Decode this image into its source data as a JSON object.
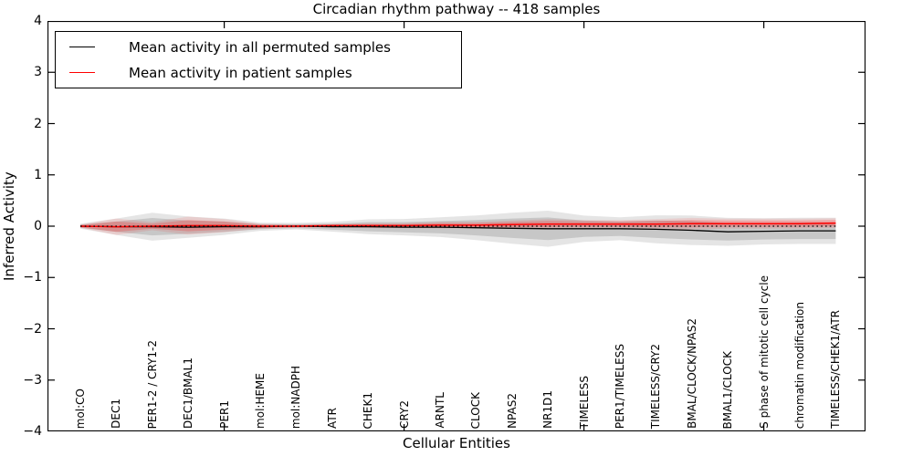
{
  "title": "Circadian rhythm pathway -- 418 samples",
  "legend": {
    "position": "upper left",
    "items": [
      {
        "label": "Mean activity in all permuted samples",
        "color": "#000000"
      },
      {
        "label": "Mean activity in patient samples",
        "color": "#ff0000"
      }
    ]
  },
  "axes": {
    "xlabel": "Cellular Entities",
    "ylabel": "Inferred Activity",
    "ylim": [
      -4,
      4
    ],
    "yticks": [
      4,
      3,
      2,
      1,
      0,
      -1,
      -2,
      -3,
      -4
    ],
    "xtick_positions": [
      5,
      10,
      15,
      20
    ],
    "tick_direction": "in"
  },
  "chart_data": {
    "type": "line",
    "title": "Circadian rhythm pathway -- 418 samples",
    "xlabel": "Cellular Entities",
    "ylabel": "Inferred Activity",
    "ylim": [
      -4,
      4
    ],
    "grid": false,
    "legend_position": "upper left",
    "categories": [
      "mol:CO",
      "DEC1",
      "PER1-2 / CRY1-2",
      "DEC1/BMAL1",
      "PER1",
      "mol:HEME",
      "mol:NADPH",
      "ATR",
      "CHEK1",
      "CRY2",
      "ARNTL",
      "CLOCK",
      "NPAS2",
      "NR1D1",
      "TIMELESS",
      "PER1/TIMELESS",
      "TIMELESS/CRY2",
      "BMAL/CLOCK/NPAS2",
      "BMAL1/CLOCK",
      "S phase of mitotic cell cycle",
      "chromatin modification",
      "TIMELESS/CHEK1/ATR"
    ],
    "series": [
      {
        "name": "Mean activity in all permuted samples",
        "color": "#000000",
        "line_style": "solid",
        "values": [
          0,
          -0.01,
          -0.01,
          -0.02,
          -0.01,
          -0.01,
          0,
          -0.01,
          -0.01,
          -0.02,
          -0.02,
          -0.03,
          -0.04,
          -0.05,
          -0.05,
          -0.05,
          -0.06,
          -0.08,
          -0.11,
          -0.1,
          -0.09,
          -0.09
        ],
        "band_std": [
          0.03,
          0.1,
          0.17,
          0.13,
          0.1,
          0.05,
          0.04,
          0.06,
          0.09,
          0.1,
          0.12,
          0.15,
          0.19,
          0.22,
          0.16,
          0.14,
          0.17,
          0.18,
          0.17,
          0.16,
          0.16,
          0.16
        ],
        "band_color": "#000000"
      },
      {
        "name": "Mean activity in patient samples",
        "color": "#ff0000",
        "line_style": "solid",
        "values": [
          0,
          -0.01,
          0,
          0.01,
          0.01,
          0,
          0,
          0.01,
          0.01,
          0.01,
          0.02,
          0.02,
          0.03,
          0.04,
          0.04,
          0.04,
          0.04,
          0.05,
          0.05,
          0.05,
          0.05,
          0.06
        ],
        "band_std": [
          0.02,
          0.1,
          0.05,
          0.11,
          0.08,
          0.03,
          0.02,
          0.02,
          0.03,
          0.03,
          0.04,
          0.04,
          0.05,
          0.06,
          0.05,
          0.05,
          0.06,
          0.07,
          0.06,
          0.06,
          0.06,
          0.06
        ],
        "band_color": "#ff0000"
      }
    ],
    "reference_line": {
      "y": 0,
      "style": "dotted",
      "color": "#000000"
    },
    "band_note": "translucent shaded bands show spread around each mean"
  }
}
